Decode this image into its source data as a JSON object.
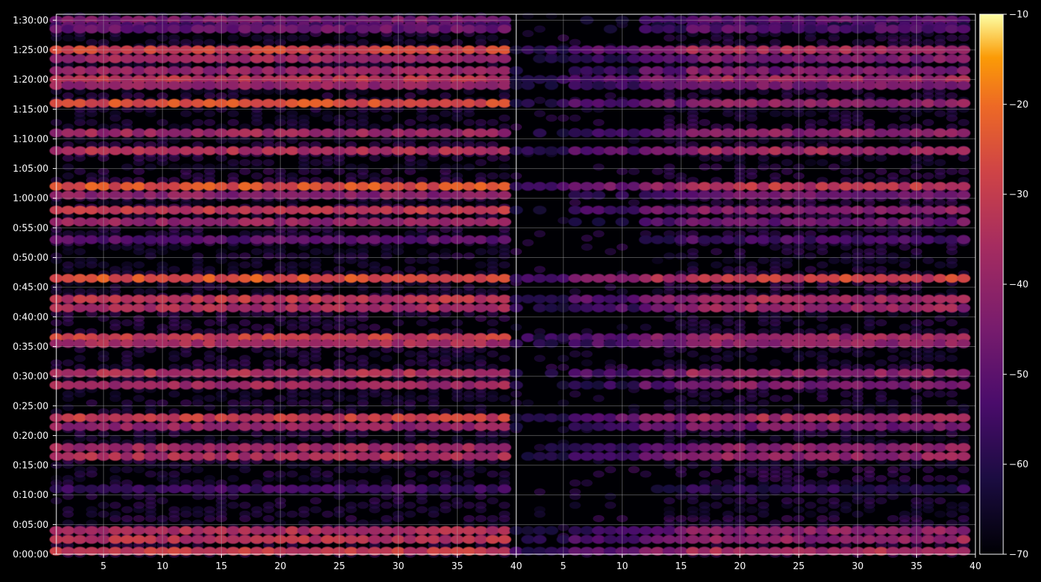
{
  "chart_data": {
    "type": "heatmap",
    "title": "",
    "xlabel": "",
    "ylabel": "",
    "background": "#000000",
    "colormap": "inferno",
    "panels": [
      {
        "name": "",
        "x_range": [
          1,
          40
        ],
        "x_ticks": [
          "5",
          "10",
          "15",
          "20",
          "25",
          "30",
          "35",
          "40"
        ]
      },
      {
        "name": "",
        "x_range": [
          1,
          40
        ],
        "x_ticks": [
          "5",
          "10",
          "15",
          "20",
          "25",
          "30",
          "35",
          "40"
        ]
      }
    ],
    "y_ticks": [
      "0:00:00",
      "0:05:00",
      "0:10:00",
      "0:15:00",
      "0:20:00",
      "0:25:00",
      "0:30:00",
      "0:35:00",
      "0:40:00",
      "0:45:00",
      "0:50:00",
      "0:55:00",
      "1:00:00",
      "1:05:00",
      "1:10:00",
      "1:15:00",
      "1:20:00",
      "1:25:00",
      "1:30:00"
    ],
    "y_range_seconds": [
      0,
      5460
    ],
    "grid": true,
    "colorbar": {
      "range": [
        -70,
        -10
      ],
      "ticks": [
        "−10",
        "−20",
        "−30",
        "−40",
        "−50",
        "−60",
        "−70"
      ],
      "placement": "right"
    },
    "bands_note": "Rows at y (seconds) with approximate intensity level (dB) per panel",
    "rows": [
      {
        "t": 5400,
        "left": -45,
        "right": -48
      },
      {
        "t": 5340,
        "left": -52,
        "right": -55
      },
      {
        "t": 5310,
        "left": -48,
        "right": -50
      },
      {
        "t": 5100,
        "left": -28,
        "right": -35
      },
      {
        "t": 5010,
        "left": -38,
        "right": -42
      },
      {
        "t": 4890,
        "left": -40,
        "right": -43
      },
      {
        "t": 4800,
        "left": -33,
        "right": -36
      },
      {
        "t": 4740,
        "left": -40,
        "right": -42
      },
      {
        "t": 4560,
        "left": -26,
        "right": -38
      },
      {
        "t": 4260,
        "left": -38,
        "right": -40
      },
      {
        "t": 4080,
        "left": -35,
        "right": -36
      },
      {
        "t": 3720,
        "left": -25,
        "right": -30
      },
      {
        "t": 3630,
        "left": -42,
        "right": -45
      },
      {
        "t": 3480,
        "left": -32,
        "right": -40
      },
      {
        "t": 3360,
        "left": -40,
        "right": -45
      },
      {
        "t": 3180,
        "left": -50,
        "right": -52
      },
      {
        "t": 2790,
        "left": -25,
        "right": -28
      },
      {
        "t": 2580,
        "left": -32,
        "right": -35
      },
      {
        "t": 2490,
        "left": -36,
        "right": -38
      },
      {
        "t": 2190,
        "left": -30,
        "right": -35
      },
      {
        "t": 2130,
        "left": -36,
        "right": -38
      },
      {
        "t": 1830,
        "left": -35,
        "right": -38
      },
      {
        "t": 1710,
        "left": -38,
        "right": -42
      },
      {
        "t": 1380,
        "left": -30,
        "right": -34
      },
      {
        "t": 1290,
        "left": -40,
        "right": -43
      },
      {
        "t": 1080,
        "left": -38,
        "right": -40
      },
      {
        "t": 990,
        "left": -35,
        "right": -38
      },
      {
        "t": 660,
        "left": -55,
        "right": -57
      },
      {
        "t": 240,
        "left": -35,
        "right": -40
      },
      {
        "t": 150,
        "left": -33,
        "right": -38
      },
      {
        "t": 30,
        "left": -30,
        "right": -34
      }
    ]
  }
}
